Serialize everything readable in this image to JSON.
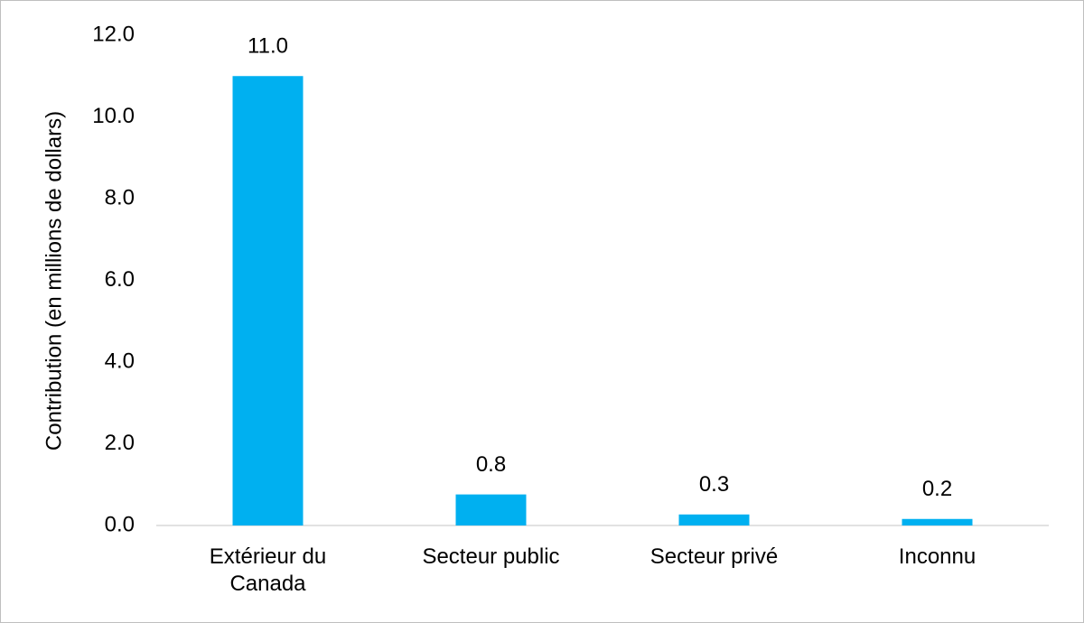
{
  "chart_data": {
    "type": "bar",
    "y_label": "Contribution (en millions de dollars)",
    "categories": [
      "Extérieur du Canada",
      "Secteur public",
      "Secteur privé",
      "Inconnu"
    ],
    "values": [
      11.0,
      0.76,
      0.27,
      0.16
    ],
    "value_labels": [
      "11.0",
      "0.8",
      "0.3",
      "0.2"
    ],
    "color": "#00b0f0",
    "ylim": [
      0,
      12
    ],
    "yticks": [
      {
        "value": 0,
        "label": "0.0"
      },
      {
        "value": 2,
        "label": "2.0"
      },
      {
        "value": 4,
        "label": "4.0"
      },
      {
        "value": 6,
        "label": "6.0"
      },
      {
        "value": 8,
        "label": "8.0"
      },
      {
        "value": 10,
        "label": "10.0"
      },
      {
        "value": 12,
        "label": "12.0"
      }
    ],
    "grid": false
  }
}
